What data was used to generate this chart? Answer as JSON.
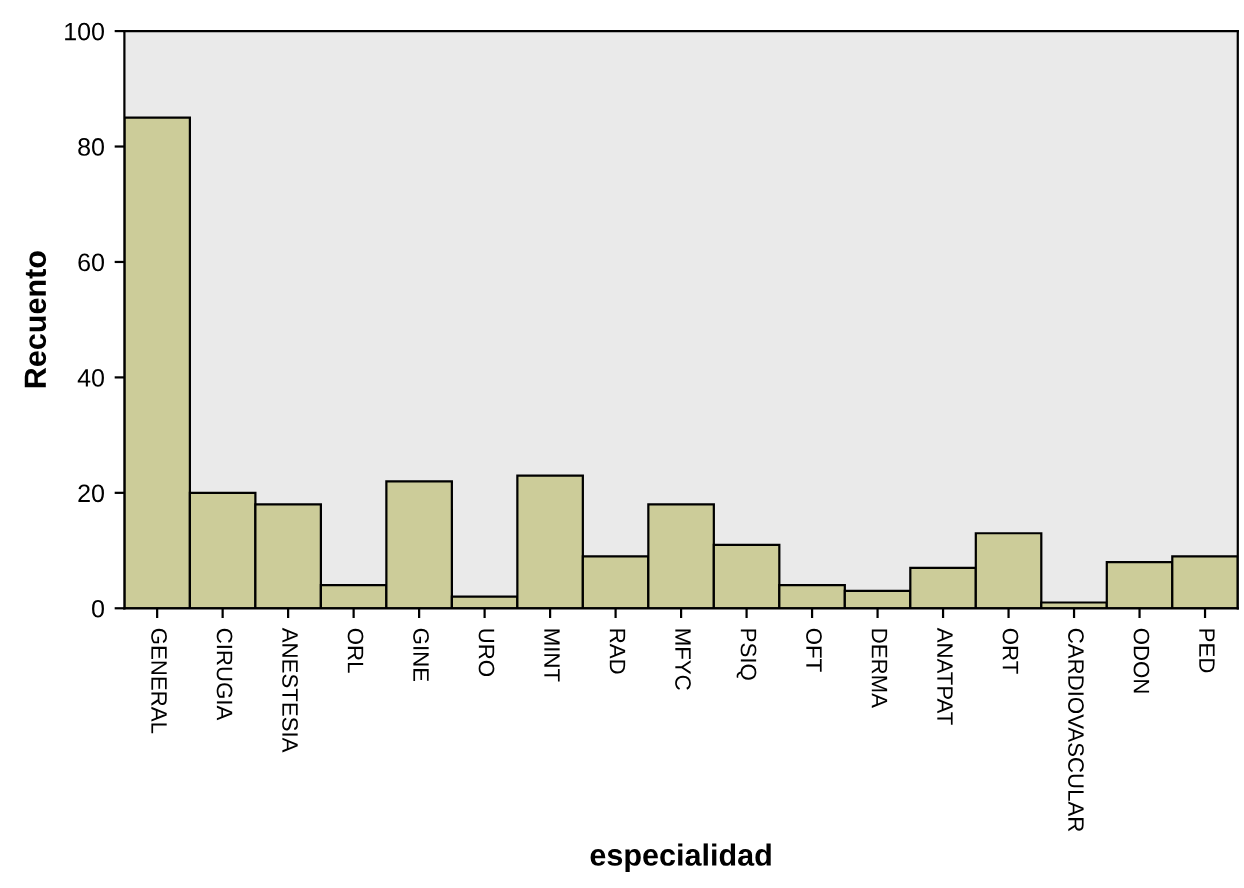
{
  "chart_data": {
    "type": "bar",
    "xlabel": "especialidad",
    "ylabel": "Recuento",
    "categories": [
      "GENERAL",
      "CIRUGIA",
      "ANESTESIA",
      "ORL",
      "GINE",
      "URO",
      "MINT",
      "RAD",
      "MFYC",
      "PSIQ",
      "OFT",
      "DERMA",
      "ANATPAT",
      "ORT",
      "CARDIOVASCULAR",
      "ODON",
      "PED"
    ],
    "values": [
      85,
      20,
      18,
      4,
      22,
      2,
      23,
      9,
      18,
      11,
      4,
      3,
      7,
      13,
      1,
      8,
      9
    ],
    "color": "#cccc99",
    "ylim": [
      0,
      100
    ],
    "yticks": [
      0,
      20,
      40,
      60,
      80,
      100
    ],
    "grid": false
  }
}
